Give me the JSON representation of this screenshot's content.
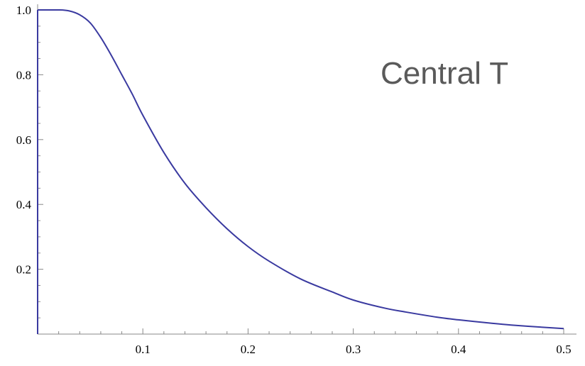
{
  "chart_data": {
    "type": "line",
    "title": "",
    "xlabel": "",
    "ylabel": "",
    "xlim": [
      0,
      0.5
    ],
    "ylim": [
      0,
      1.0
    ],
    "grid": false,
    "x_ticks": [
      0.1,
      0.2,
      0.3,
      0.4,
      0.5
    ],
    "x_tick_labels": [
      "0.1",
      "0.2",
      "0.3",
      "0.4",
      "0.5"
    ],
    "y_ticks": [
      0.2,
      0.4,
      0.6,
      0.8,
      1.0
    ],
    "y_tick_labels": [
      "0.2",
      "0.4",
      "0.6",
      "0.8",
      "1.0"
    ],
    "annotation": "Central T",
    "line_color": "#3a3aa0",
    "series": [
      {
        "x": [
          0,
          0.02,
          0.03,
          0.04,
          0.05,
          0.06,
          0.07,
          0.08,
          0.09,
          0.1,
          0.12,
          0.14,
          0.16,
          0.18,
          0.2,
          0.22,
          0.25,
          0.28,
          0.3,
          0.33,
          0.35,
          0.38,
          0.4,
          0.43,
          0.45,
          0.48,
          0.5
        ],
        "y": [
          1.0,
          1.0,
          0.997,
          0.985,
          0.96,
          0.915,
          0.86,
          0.8,
          0.74,
          0.675,
          0.56,
          0.465,
          0.39,
          0.325,
          0.27,
          0.225,
          0.17,
          0.13,
          0.105,
          0.08,
          0.068,
          0.052,
          0.044,
          0.034,
          0.028,
          0.021,
          0.017
        ]
      }
    ]
  }
}
